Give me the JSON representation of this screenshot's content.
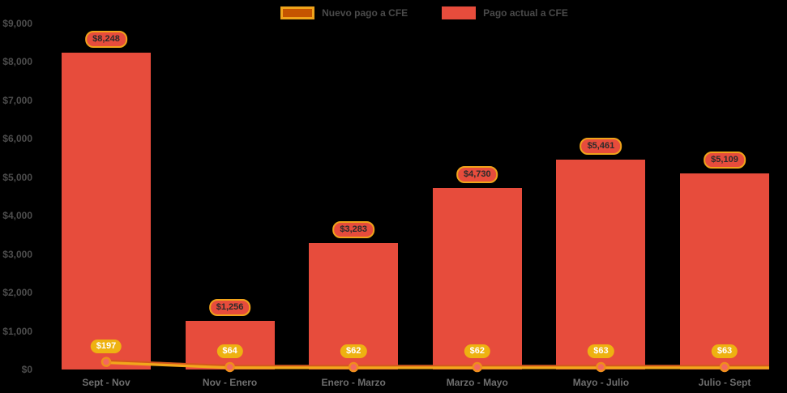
{
  "legend": {
    "items": [
      {
        "label": "Nuevo pago a CFE",
        "swatch_fill": "#c55400",
        "swatch_border": "#f0a31a"
      },
      {
        "label": "Pago actual a CFE",
        "swatch_fill": "#e74c3c",
        "swatch_border": "#e74c3c"
      }
    ],
    "text_color": "#4a4a4a",
    "position": "top-center"
  },
  "chart_data": {
    "type": "bar",
    "title": "",
    "xlabel": "",
    "ylabel": "",
    "grid": false,
    "background": "#000000",
    "axis_text_color": "#4d4d4d",
    "category_text_color": "#6e6e6e",
    "ylim": [
      0,
      9000
    ],
    "yticks": {
      "labels": [
        "$0",
        "$1,000",
        "$2,000",
        "$3,000",
        "$4,000",
        "$5,000",
        "$6,000",
        "$7,000",
        "$8,000",
        "$9,000"
      ],
      "values": [
        0,
        1000,
        2000,
        3000,
        4000,
        5000,
        6000,
        7000,
        8000,
        9000
      ]
    },
    "categories": [
      "Sept - Nov",
      "Nov - Enero",
      "Enero - Marzo",
      "Marzo - Mayo",
      "Mayo - Julio",
      "Julio - Sept"
    ],
    "series": [
      {
        "name": "Pago actual a CFE",
        "type": "bar",
        "color": "#e74c3c",
        "values": [
          8248,
          1256,
          3283,
          4730,
          5461,
          5109
        ],
        "labels": [
          "$8,248",
          "$1,256",
          "$3,283",
          "$4,730",
          "$5,461",
          "$5,109"
        ],
        "label_style": {
          "bg": "#e74c3c",
          "border": "#f0a31a",
          "text": "#2b2b2b"
        }
      },
      {
        "name": "Nuevo pago a CFE",
        "type": "line",
        "color": "#f2a71b",
        "line_top_color": "#d4581c",
        "marker_fill": "#f3685f",
        "marker_ring": "#ef8e1d",
        "values": [
          197,
          64,
          62,
          62,
          63,
          63
        ],
        "labels": [
          "$197",
          "$64",
          "$62",
          "$62",
          "$63",
          "$63"
        ],
        "label_style": {
          "bg": "#eeb211",
          "text": "#ffffff"
        }
      }
    ]
  }
}
